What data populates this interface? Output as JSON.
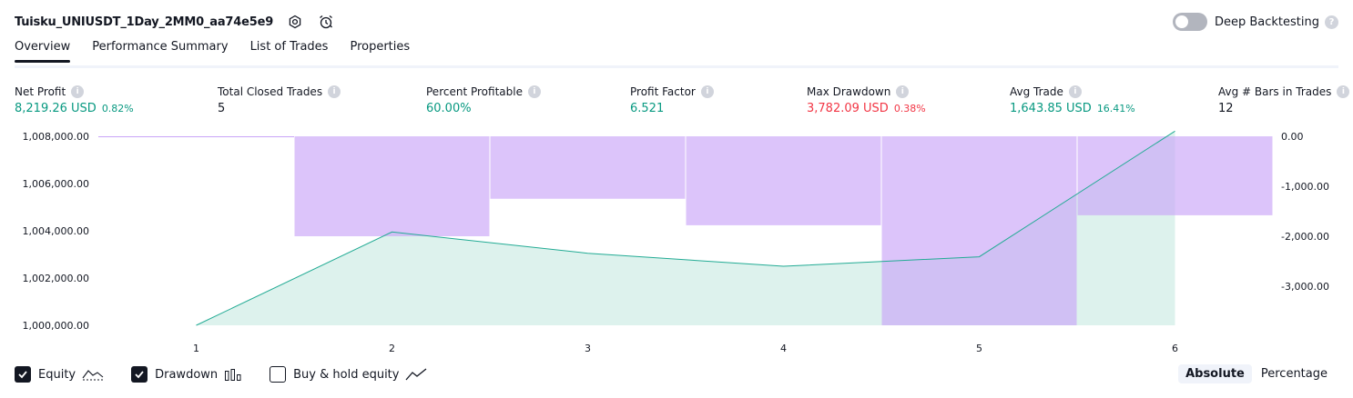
{
  "header": {
    "strategy_title": "Tuisku_UNIUSDT_1Day_2MM0_aa74e5e9",
    "deep_backtesting_label": "Deep Backtesting",
    "deep_backtesting_enabled": false
  },
  "tabs": [
    {
      "label": "Overview",
      "active": true
    },
    {
      "label": "Performance Summary",
      "active": false
    },
    {
      "label": "List of Trades",
      "active": false
    },
    {
      "label": "Properties",
      "active": false
    }
  ],
  "metrics": {
    "net_profit": {
      "label": "Net Profit",
      "value": "8,219.26 USD",
      "pct": "0.82%"
    },
    "total_closed_trades": {
      "label": "Total Closed Trades",
      "value": "5"
    },
    "percent_profitable": {
      "label": "Percent Profitable",
      "value": "60.00%"
    },
    "profit_factor": {
      "label": "Profit Factor",
      "value": "6.521"
    },
    "max_drawdown": {
      "label": "Max Drawdown",
      "value": "3,782.09 USD",
      "pct": "0.38%"
    },
    "avg_trade": {
      "label": "Avg Trade",
      "value": "1,643.85 USD",
      "pct": "16.41%"
    },
    "avg_bars": {
      "label": "Avg # Bars in Trades",
      "value": "12"
    }
  },
  "legend": {
    "equity_label": "Equity",
    "equity_checked": true,
    "drawdown_label": "Drawdown",
    "drawdown_checked": true,
    "buyhold_label": "Buy & hold equity",
    "buyhold_checked": false
  },
  "mode": {
    "absolute_label": "Absolute",
    "percentage_label": "Percentage",
    "selected": "Absolute"
  },
  "colors": {
    "positive": "#089981",
    "negative": "#f23645",
    "equity_line": "#22ab94",
    "equity_fill": "#d4efe9",
    "drawdown_fill": "#c9a4f7"
  },
  "chart_data": {
    "type": "area",
    "x": [
      1,
      2,
      3,
      4,
      5,
      6
    ],
    "x_ticks": [
      "1",
      "2",
      "3",
      "4",
      "5",
      "6"
    ],
    "left_axis": {
      "ticks": [
        "1,008,000.00",
        "1,006,000.00",
        "1,004,000.00",
        "1,002,000.00",
        "1,000,000.00"
      ],
      "tick_values": [
        1008000,
        1006000,
        1004000,
        1002000,
        1000000
      ],
      "ylim": [
        1000000,
        1008000
      ]
    },
    "right_axis": {
      "ticks": [
        "0.00",
        "-1,000.00",
        "-2,000.00",
        "-3,000.00"
      ],
      "tick_values": [
        0,
        -1000,
        -2000,
        -3000
      ],
      "ylim": [
        -3782.09,
        0
      ]
    },
    "series": [
      {
        "name": "Equity",
        "axis": "left",
        "values": [
          1000000,
          1003950,
          1003050,
          1002500,
          1002900,
          1008219.26
        ]
      },
      {
        "name": "Drawdown",
        "axis": "right",
        "bars": [
          {
            "x": 1,
            "value": 0
          },
          {
            "x": 2,
            "value": -2000
          },
          {
            "x": 3,
            "value": -1250
          },
          {
            "x": 4,
            "value": -1780
          },
          {
            "x": 5,
            "value": -3782.09
          },
          {
            "x": 6,
            "value": -1580
          }
        ]
      }
    ]
  }
}
